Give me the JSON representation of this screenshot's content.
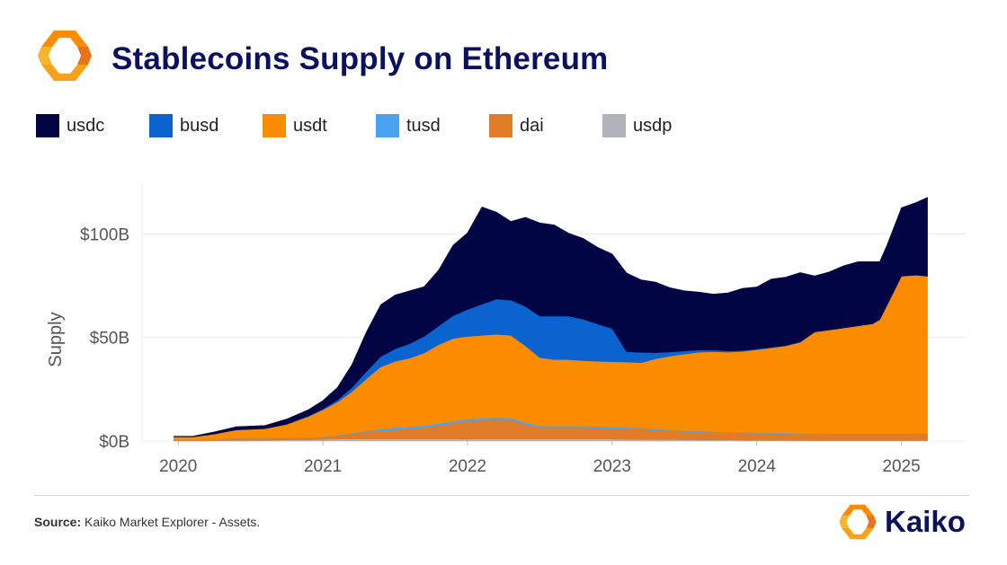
{
  "header": {
    "title": "Stablecoins Supply on Ethereum",
    "brand_name": "Kaiko"
  },
  "footer": {
    "source_label": "Source:",
    "source_text": " Kaiko Market Explorer - Assets."
  },
  "chart_data": {
    "type": "area",
    "stacked": true,
    "title": "Stablecoins Supply on Ethereum",
    "xlabel": "",
    "ylabel": "Supply",
    "x_ticks": [
      "2020",
      "2021",
      "2022",
      "2023",
      "2024",
      "2025"
    ],
    "y_ticks": [
      "$0B",
      "$50B",
      "$100B"
    ],
    "y_tick_values": [
      0,
      50,
      100
    ],
    "xlim": [
      2019.75,
      2025.45
    ],
    "ylim": [
      0,
      124
    ],
    "grid": true,
    "legend_position": "top",
    "units": "USD billions",
    "x": [
      2019.97,
      2020.1,
      2020.25,
      2020.4,
      2020.6,
      2020.75,
      2020.9,
      2021.0,
      2021.1,
      2021.2,
      2021.3,
      2021.4,
      2021.5,
      2021.6,
      2021.7,
      2021.8,
      2021.9,
      2022.0,
      2022.1,
      2022.2,
      2022.3,
      2022.4,
      2022.5,
      2022.6,
      2022.7,
      2022.8,
      2022.9,
      2023.0,
      2023.1,
      2023.2,
      2023.3,
      2023.4,
      2023.5,
      2023.6,
      2023.7,
      2023.8,
      2023.9,
      2024.0,
      2024.1,
      2024.2,
      2024.3,
      2024.4,
      2024.5,
      2024.6,
      2024.7,
      2024.8,
      2024.85,
      2024.9,
      2025.0,
      2025.1,
      2025.18
    ],
    "series": [
      {
        "name": "usdp",
        "color": "#b0b3bb",
        "values": [
          0.2,
          0.2,
          0.3,
          0.3,
          0.4,
          0.5,
          0.6,
          0.8,
          1.0,
          1.0,
          1.0,
          1.0,
          1.0,
          1.0,
          1.0,
          1.0,
          1.0,
          1.0,
          1.0,
          1.0,
          1.0,
          1.0,
          1.0,
          1.0,
          1.0,
          1.0,
          1.0,
          1.0,
          0.8,
          0.8,
          0.7,
          0.7,
          0.6,
          0.5,
          0.5,
          0.5,
          0.4,
          0.4,
          0.4,
          0.4,
          0.3,
          0.3,
          0.3,
          0.3,
          0.3,
          0.3,
          0.3,
          0.3,
          0.3,
          0.3,
          0.3
        ]
      },
      {
        "name": "dai",
        "color": "#e07b28",
        "values": [
          0.3,
          0.3,
          0.5,
          1.0,
          1.0,
          1.0,
          1.0,
          1.0,
          1.5,
          2.5,
          3.5,
          4.0,
          4.5,
          5.0,
          5.5,
          6.5,
          7.5,
          8.5,
          9.0,
          9.5,
          9.0,
          7.0,
          5.5,
          5.5,
          5.5,
          5.5,
          5.2,
          5.0,
          5.0,
          5.0,
          4.5,
          4.3,
          4.0,
          4.0,
          3.8,
          3.6,
          3.5,
          3.4,
          3.3,
          3.2,
          3.1,
          3.0,
          3.0,
          3.0,
          3.0,
          3.0,
          3.0,
          3.0,
          3.0,
          3.0,
          3.0
        ]
      },
      {
        "name": "tusd",
        "color": "#4aa3f0",
        "values": [
          0.0,
          0.0,
          0.1,
          0.1,
          0.1,
          0.1,
          0.2,
          0.2,
          0.3,
          0.3,
          0.5,
          0.8,
          1.0,
          1.0,
          1.0,
          1.0,
          1.0,
          1.0,
          1.0,
          1.0,
          1.0,
          1.0,
          0.8,
          0.8,
          0.8,
          0.8,
          0.8,
          0.8,
          0.8,
          0.5,
          0.5,
          0.5,
          0.4,
          0.4,
          0.3,
          0.3,
          0.3,
          0.3,
          0.3,
          0.3,
          0.3,
          0.3,
          0.3,
          0.3,
          0.3,
          0.3,
          0.3,
          0.3,
          0.3,
          0.3,
          0.3
        ]
      },
      {
        "name": "usdt",
        "color": "#fb8c00",
        "values": [
          1.5,
          1.5,
          2.5,
          4.0,
          4.5,
          6.5,
          10.0,
          13.0,
          16.0,
          20.0,
          25.0,
          30.0,
          32.0,
          33.0,
          35.0,
          38.0,
          40.0,
          40.0,
          40.0,
          40.0,
          40.0,
          37.0,
          33.0,
          32.0,
          32.0,
          31.5,
          31.5,
          31.5,
          31.5,
          31.5,
          34.0,
          35.5,
          37.0,
          38.0,
          38.5,
          38.5,
          39.0,
          40.0,
          41.0,
          42.0,
          44.0,
          49.0,
          50.0,
          51.0,
          52.0,
          53.0,
          55.0,
          62.0,
          76.0,
          76.5,
          76.0
        ]
      },
      {
        "name": "busd",
        "color": "#0b63cf",
        "values": [
          0.0,
          0.0,
          0.0,
          0.0,
          0.0,
          0.0,
          0.3,
          0.5,
          1.0,
          2.0,
          3.5,
          5.0,
          6.0,
          7.0,
          8.0,
          9.0,
          11.0,
          13.0,
          15.0,
          17.0,
          17.0,
          19.0,
          20.0,
          21.0,
          21.0,
          20.0,
          18.0,
          16.0,
          5.0,
          5.0,
          3.0,
          2.0,
          1.5,
          1.0,
          0.8,
          0.6,
          0.5,
          0.3,
          0.2,
          0.2,
          0.1,
          0.1,
          0.0,
          0.0,
          0.0,
          0.0,
          0.0,
          0.0,
          0.0,
          0.0,
          0.0
        ]
      },
      {
        "name": "usdc",
        "color": "#020543",
        "values": [
          0.3,
          0.3,
          1.0,
          1.5,
          1.5,
          2.5,
          3.0,
          4.0,
          6.0,
          11.0,
          19.0,
          25.0,
          26.0,
          25.5,
          24.0,
          27.0,
          34.0,
          37.0,
          47.0,
          42.0,
          38.0,
          43.0,
          45.0,
          44.0,
          40.0,
          39.0,
          37.0,
          36.0,
          38.0,
          35.0,
          34.0,
          31.0,
          29.0,
          28.0,
          27.0,
          28.0,
          30.0,
          30.0,
          33.0,
          33.0,
          33.5,
          27.0,
          28.0,
          30.0,
          31.0,
          30.0,
          28.0,
          29.0,
          33.0,
          35.0,
          38.0
        ]
      }
    ]
  },
  "legend": [
    {
      "label": "usdc",
      "color": "#020543"
    },
    {
      "label": "busd",
      "color": "#0b63cf"
    },
    {
      "label": "usdt",
      "color": "#fb8c00"
    },
    {
      "label": "tusd",
      "color": "#4aa3f0"
    },
    {
      "label": "dai",
      "color": "#e07b28"
    },
    {
      "label": "usdp",
      "color": "#b0b3bb"
    }
  ],
  "icons": {
    "logo": "kaiko-logo-icon",
    "brand_logo": "kaiko-brand-icon"
  }
}
